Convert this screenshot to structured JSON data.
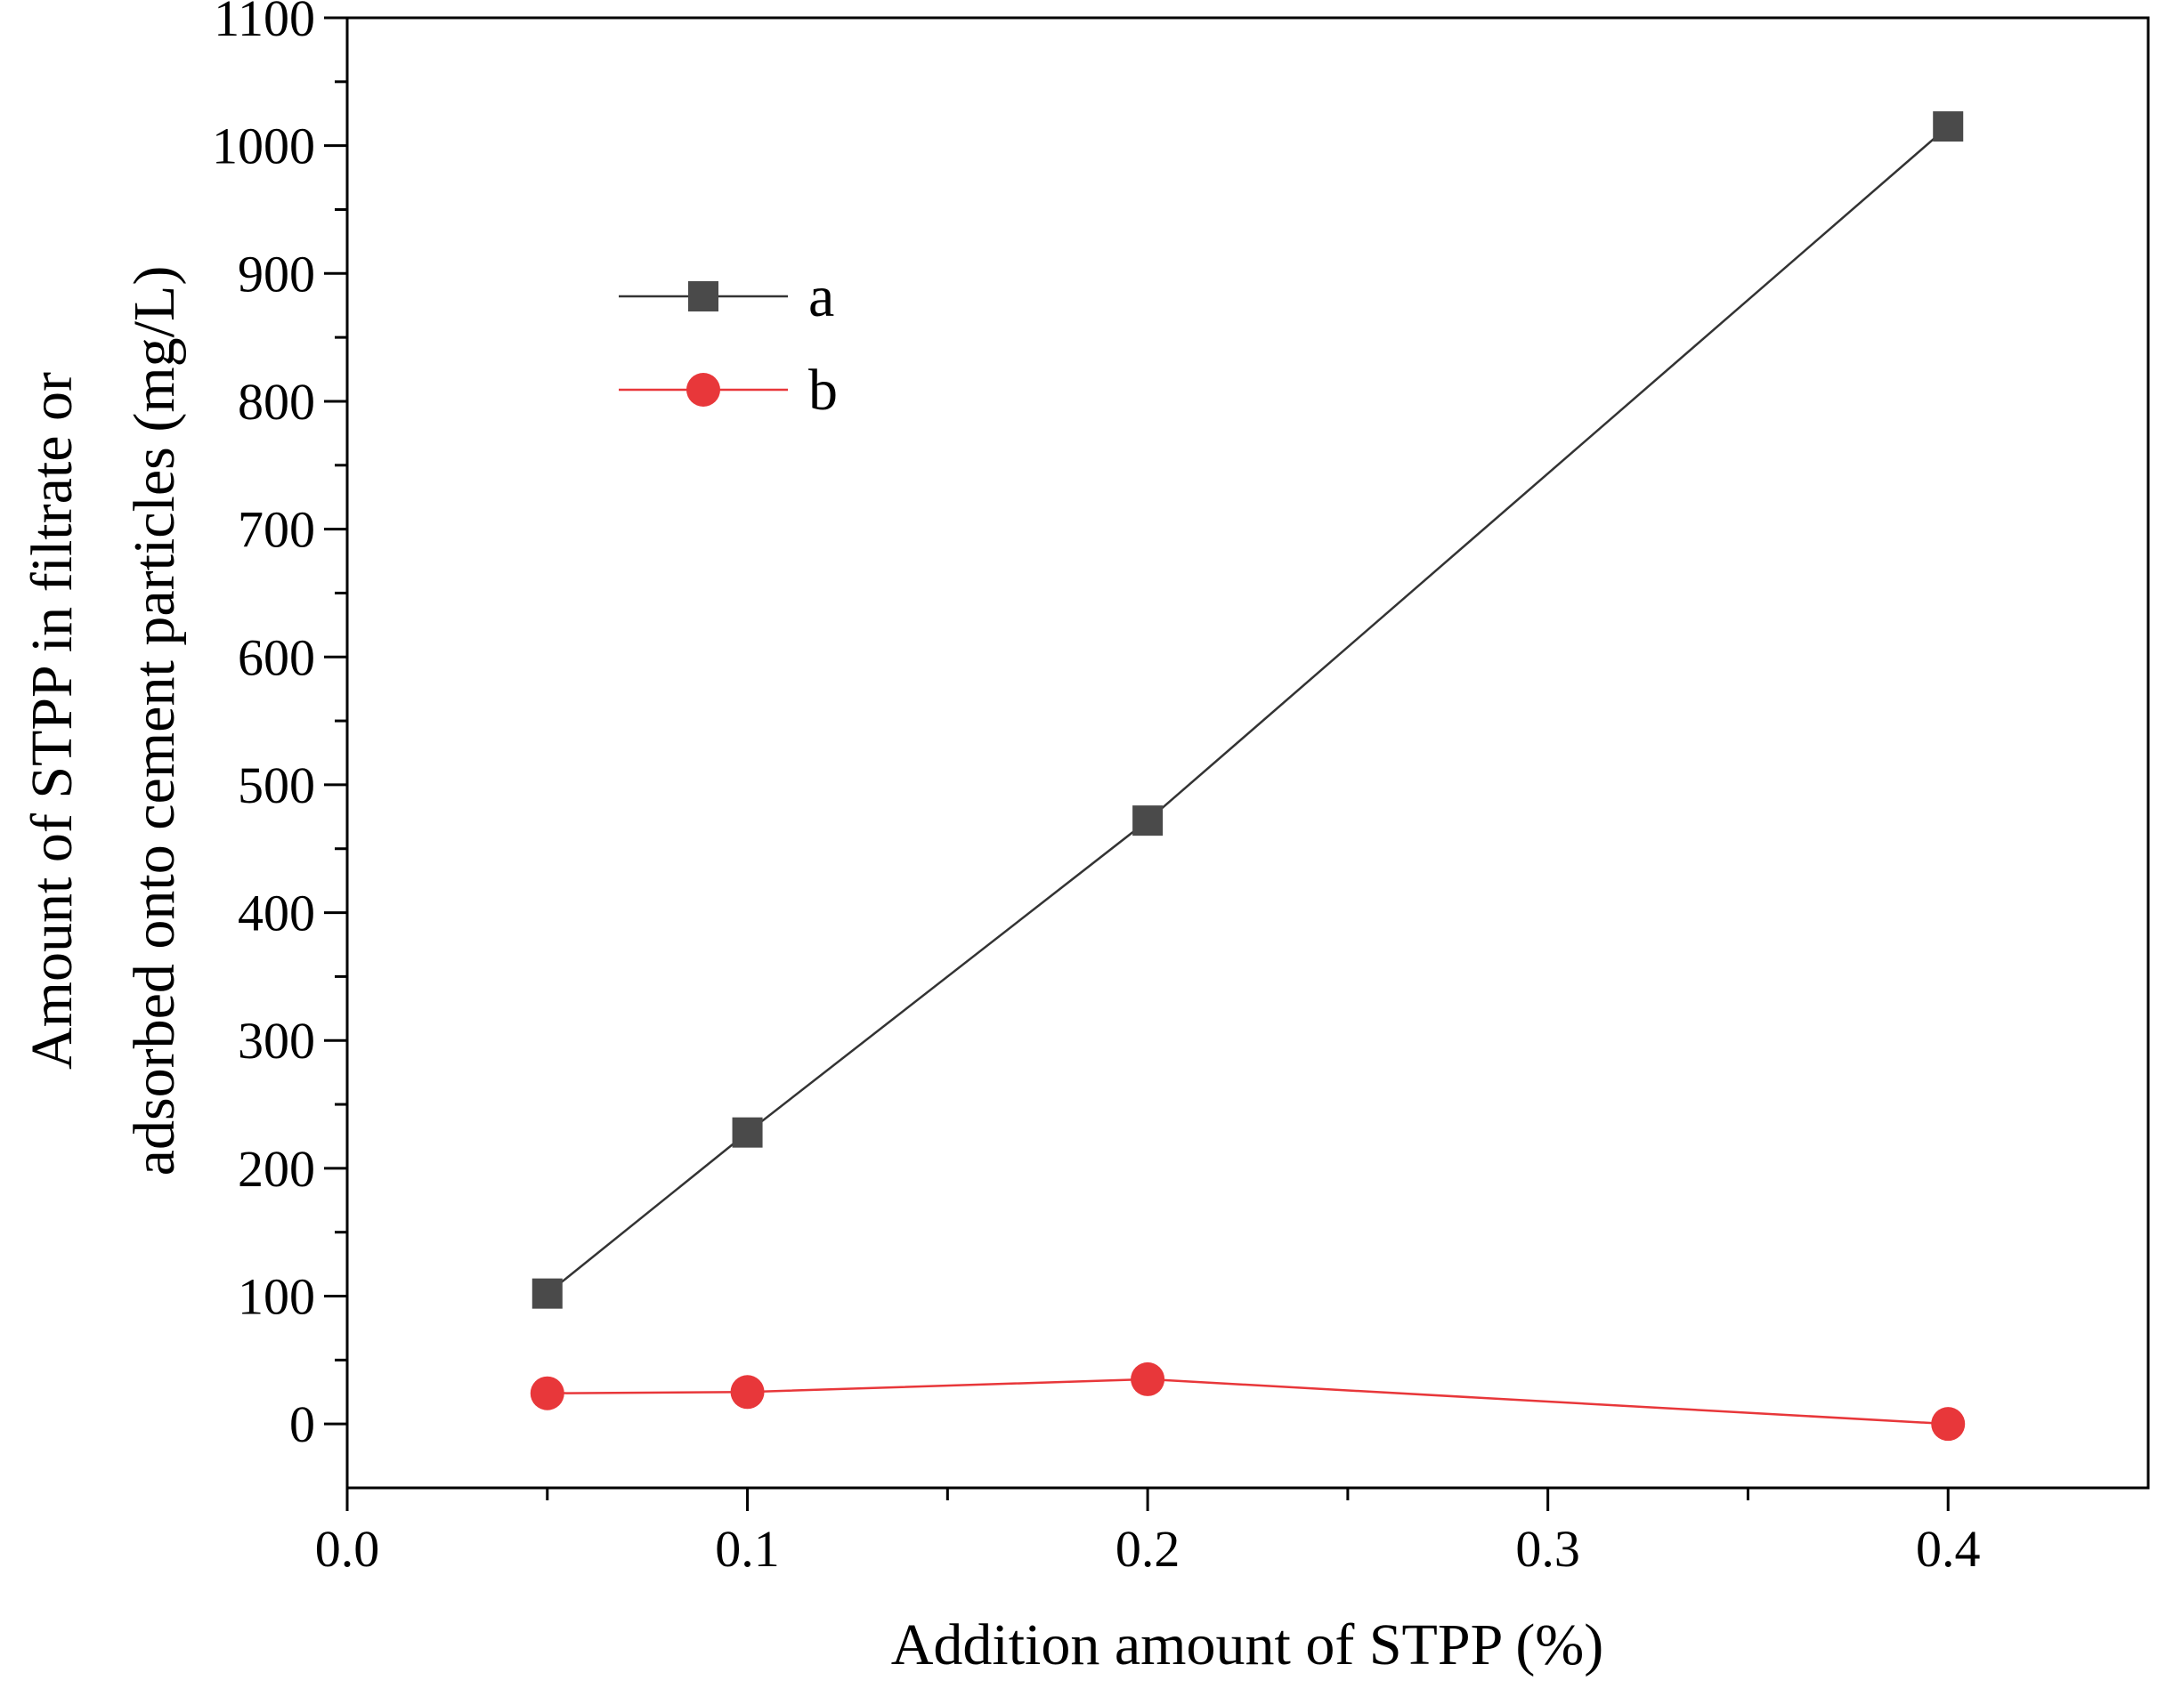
{
  "chart_data": {
    "type": "line",
    "title": "",
    "xlabel": "Addition amount of STPP (%)",
    "ylabel_line1": "Amount of STPP in filtrate or",
    "ylabel_line2": "adsorbed onto cement particles (mg/L)",
    "xlim": [
      0.0,
      0.45
    ],
    "ylim": [
      -50,
      1100
    ],
    "x_ticks": [
      0.0,
      0.1,
      0.2,
      0.3,
      0.4
    ],
    "x_tick_labels": [
      "0.0",
      "0.1",
      "0.2",
      "0.3",
      "0.4"
    ],
    "x_minor_ticks": [
      0.05,
      0.15,
      0.25,
      0.35
    ],
    "y_ticks": [
      0,
      100,
      200,
      300,
      400,
      500,
      600,
      700,
      800,
      900,
      1000,
      1100
    ],
    "y_tick_labels": [
      "0",
      "100",
      "200",
      "300",
      "400",
      "500",
      "600",
      "700",
      "800",
      "900",
      "1000",
      "1100"
    ],
    "y_minor_ticks": [
      50,
      150,
      250,
      350,
      450,
      550,
      650,
      750,
      850,
      950,
      1050
    ],
    "legend_position": "upper-left",
    "series": [
      {
        "name": "a",
        "marker": "square",
        "color": "#4a4a4a",
        "line_color": "#333333",
        "x": [
          0.05,
          0.1,
          0.2,
          0.4
        ],
        "y": [
          102,
          228,
          472,
          1015
        ]
      },
      {
        "name": "b",
        "marker": "circle",
        "color": "#e8373a",
        "line_color": "#e8373a",
        "x": [
          0.05,
          0.1,
          0.2,
          0.4
        ],
        "y": [
          24,
          25,
          35,
          0
        ]
      }
    ]
  }
}
